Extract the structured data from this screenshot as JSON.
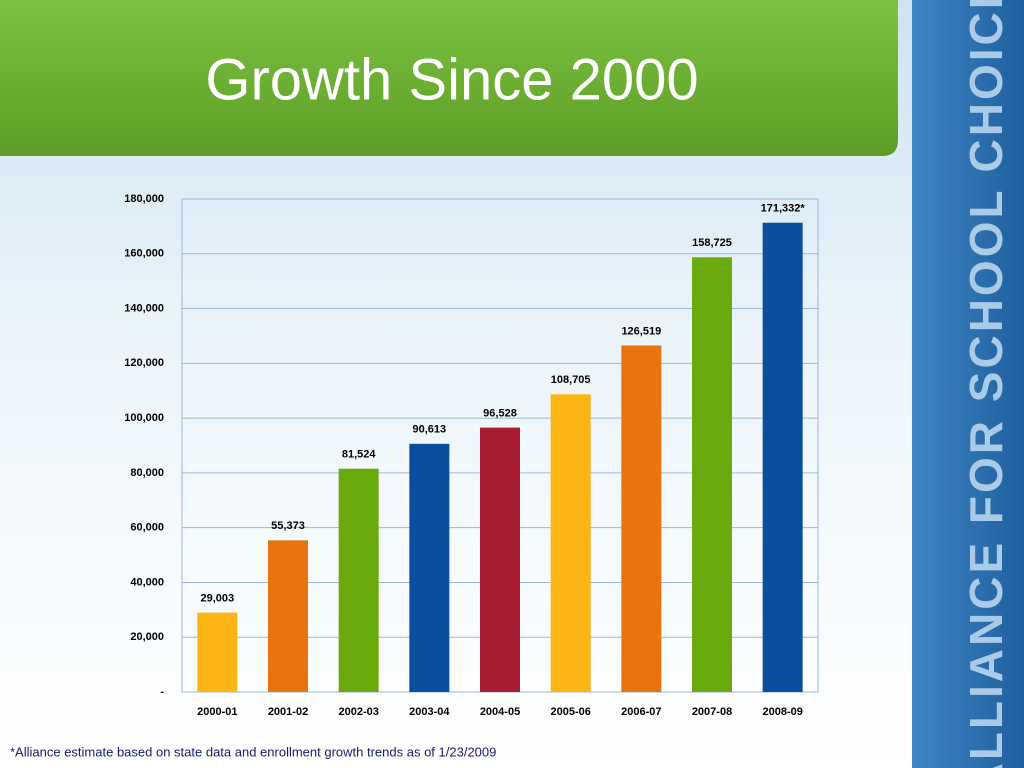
{
  "title": "Growth Since 2000",
  "branding": "ALLIANCE FOR SCHOOL CHOICE",
  "footnote": "*Alliance estimate based on state data and enrollment growth trends as of 1/23/2009",
  "chart_data": {
    "type": "bar",
    "categories": [
      "2000-01",
      "2001-02",
      "2002-03",
      "2003-04",
      "2004-05",
      "2005-06",
      "2006-07",
      "2007-08",
      "2008-09"
    ],
    "values": [
      29003,
      55373,
      81524,
      90613,
      96528,
      108705,
      126519,
      158725,
      171332
    ],
    "value_labels": [
      "29,003",
      "55,373",
      "81,524",
      "90,613",
      "96,528",
      "108,705",
      "126,519",
      "158,725",
      "171,332*"
    ],
    "colors": [
      "#fdb515",
      "#e8730f",
      "#6aaa0c",
      "#0a4f9e",
      "#a81c32",
      "#fdb515",
      "#e8730f",
      "#6aaa0c",
      "#0a4f9e"
    ],
    "ylim": [
      0,
      180000
    ],
    "yticks": [
      {
        "value": 0,
        "label": "-"
      },
      {
        "value": 20000,
        "label": "20,000"
      },
      {
        "value": 40000,
        "label": "40,000"
      },
      {
        "value": 60000,
        "label": "60,000"
      },
      {
        "value": 80000,
        "label": "80,000"
      },
      {
        "value": 100000,
        "label": "100,000"
      },
      {
        "value": 120000,
        "label": "120,000"
      },
      {
        "value": 140000,
        "label": "140,000"
      },
      {
        "value": 160000,
        "label": "160,000"
      },
      {
        "value": 180000,
        "label": "180,000"
      }
    ],
    "grid": true
  }
}
